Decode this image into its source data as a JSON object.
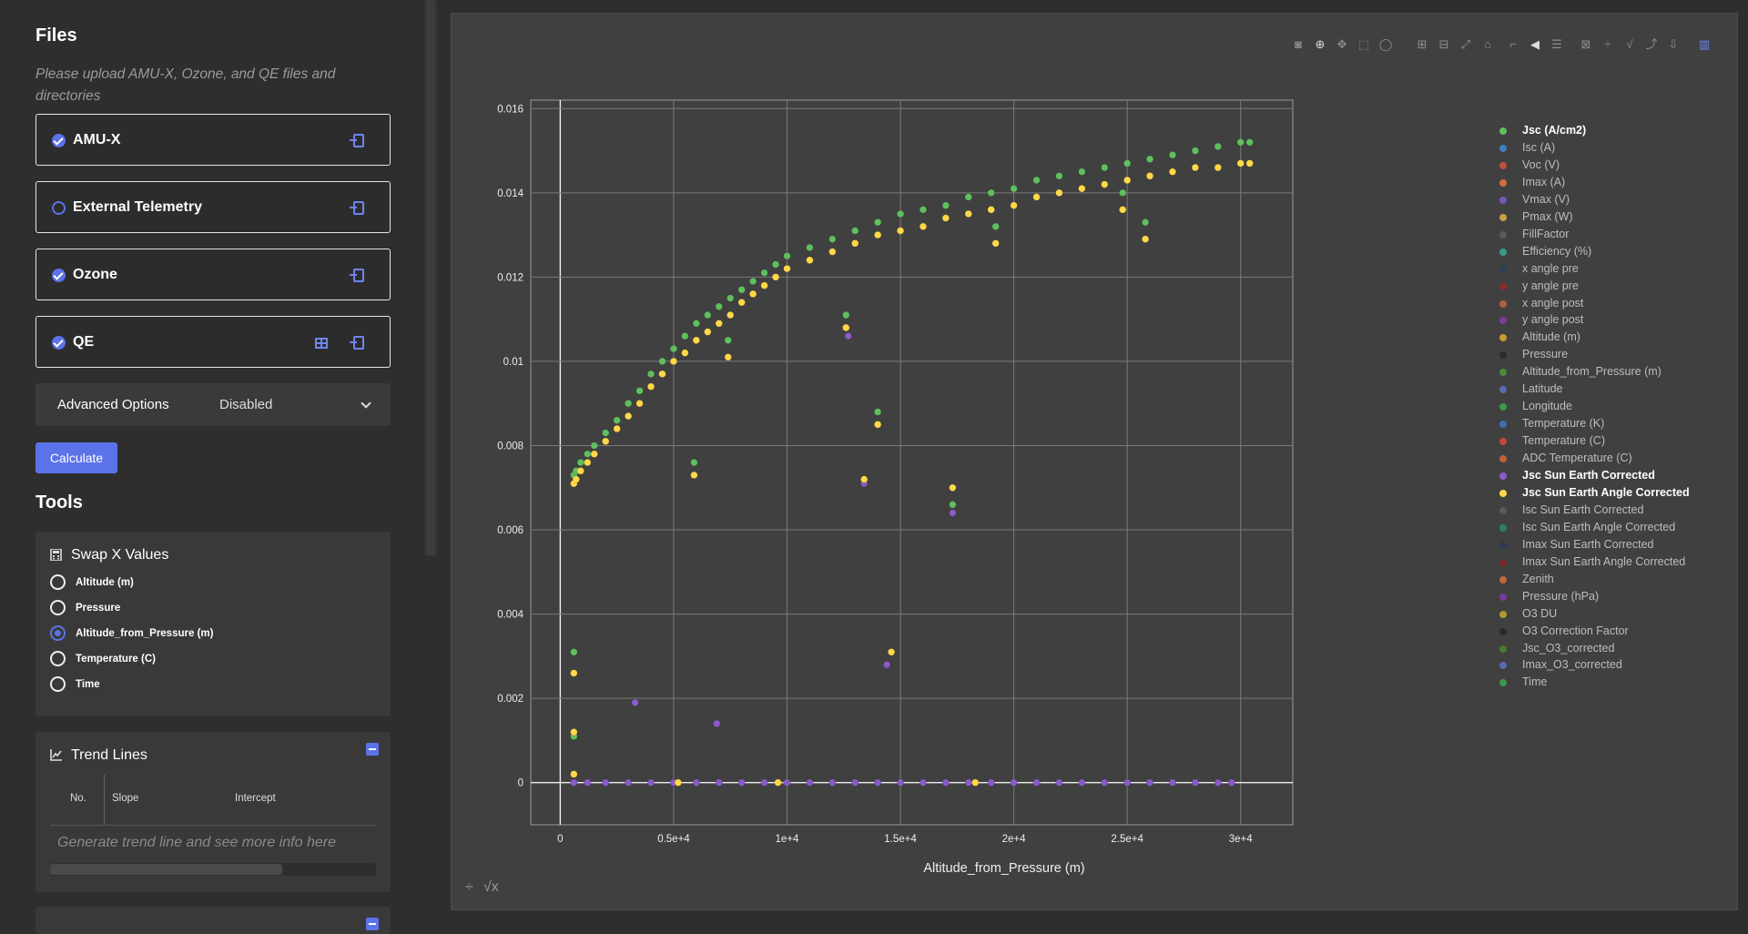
{
  "files": {
    "heading": "Files",
    "hint": "Please upload AMU-X, Ozone, and QE files and directories",
    "items": [
      {
        "label": "AMU-X",
        "checked": true,
        "has_table": false
      },
      {
        "label": "External Telemetry",
        "checked": false,
        "has_table": false
      },
      {
        "label": "Ozone",
        "checked": true,
        "has_table": false
      },
      {
        "label": "QE",
        "checked": true,
        "has_table": true
      }
    ]
  },
  "advanced": {
    "label": "Advanced Options",
    "value": "Disabled"
  },
  "calculate_label": "Calculate",
  "tools": {
    "heading": "Tools",
    "swap": {
      "title": "Swap X Values",
      "options": [
        "Altitude (m)",
        "Pressure",
        "Altitude_from_Pressure (m)",
        "Temperature (C)",
        "Time"
      ],
      "selected": "Altitude_from_Pressure (m)"
    },
    "trend": {
      "title": "Trend Lines",
      "columns": [
        "No.",
        "Slope",
        "Intercept"
      ],
      "placeholder": "Generate trend line and see more info here"
    }
  },
  "colors": {
    "accent": "#5b73e8",
    "green": "#5fbf5f",
    "yellow": "#ffd84a",
    "purple": "#8a5bc8"
  },
  "chart_data": {
    "type": "scatter",
    "xlabel": "Altitude_from_Pressure (m)",
    "ylabel": "",
    "xlim": [
      -1300,
      32300
    ],
    "ylim": [
      -0.001,
      0.0162
    ],
    "x_ticks": [
      "0",
      "0.5e+4",
      "1e+4",
      "1.5e+4",
      "2e+4",
      "2.5e+4",
      "3e+4"
    ],
    "x_tick_values": [
      0,
      5000,
      10000,
      15000,
      20000,
      25000,
      30000
    ],
    "y_ticks": [
      "0",
      "0.002",
      "0.004",
      "0.006",
      "0.008",
      "0.01",
      "0.012",
      "0.014",
      "0.016"
    ],
    "y_tick_values": [
      0,
      0.002,
      0.004,
      0.006,
      0.008,
      0.01,
      0.012,
      0.014,
      0.016
    ],
    "grid": true,
    "legend_position": "right",
    "series": [
      {
        "name": "Jsc (A/cm2)",
        "color": "#5fbf5f",
        "x": [
          600,
          700,
          900,
          1200,
          1500,
          2000,
          2500,
          3000,
          3500,
          4000,
          4500,
          5000,
          5500,
          6000,
          6500,
          7000,
          7500,
          8000,
          8500,
          9000,
          9500,
          10000,
          11000,
          12000,
          13000,
          14000,
          15000,
          16000,
          17000,
          18000,
          19000,
          20000,
          21000,
          22000,
          23000,
          24000,
          25000,
          26000,
          27000,
          28000,
          29000,
          30000,
          30400,
          5900,
          7400,
          12600,
          14000,
          13400,
          17300,
          19200,
          24800,
          25800,
          600,
          600,
          600
        ],
        "y": [
          0.0073,
          0.0074,
          0.0076,
          0.0078,
          0.008,
          0.0083,
          0.0086,
          0.009,
          0.0093,
          0.0097,
          0.01,
          0.0103,
          0.0106,
          0.0109,
          0.0111,
          0.0113,
          0.0115,
          0.0117,
          0.0119,
          0.0121,
          0.0123,
          0.0125,
          0.0127,
          0.0129,
          0.0131,
          0.0133,
          0.0135,
          0.0136,
          0.0137,
          0.0139,
          0.014,
          0.0141,
          0.0143,
          0.0144,
          0.0145,
          0.0146,
          0.0147,
          0.0148,
          0.0149,
          0.015,
          0.0151,
          0.0152,
          0.0152,
          0.0076,
          0.0105,
          0.0111,
          0.0088,
          0.0072,
          0.0066,
          0.0132,
          0.014,
          0.0133,
          0.0031,
          0.0011,
          0.0002
        ]
      },
      {
        "name": "Jsc Sun Earth Corrected",
        "color": "#8a5bc8",
        "x": [
          600,
          1200,
          2000,
          3000,
          3300,
          4000,
          5000,
          6000,
          6900,
          7000,
          8000,
          9000,
          10000,
          11000,
          12000,
          12700,
          13000,
          13400,
          14000,
          14400,
          15000,
          16000,
          17000,
          17300,
          18000,
          19000,
          20000,
          21000,
          22000,
          23000,
          24000,
          25000,
          26000,
          27000,
          28000,
          29000,
          29600
        ],
        "y": [
          0,
          0,
          0,
          0,
          0.0019,
          0,
          0,
          0,
          0.0014,
          0,
          0,
          0,
          0,
          0,
          0,
          0.0106,
          0,
          0.0071,
          0,
          0.0028,
          0,
          0,
          0,
          0.0064,
          0,
          0,
          0,
          0,
          0,
          0,
          0,
          0,
          0,
          0,
          0,
          0,
          0
        ]
      },
      {
        "name": "Jsc Sun Earth Angle Corrected",
        "color": "#ffd84a",
        "x": [
          600,
          700,
          900,
          1200,
          1500,
          2000,
          2500,
          3000,
          3500,
          4000,
          4500,
          5000,
          5500,
          6000,
          6500,
          7000,
          7500,
          8000,
          8500,
          9000,
          9500,
          10000,
          11000,
          12000,
          13000,
          14000,
          15000,
          16000,
          17000,
          18000,
          19000,
          20000,
          21000,
          22000,
          23000,
          24000,
          25000,
          26000,
          27000,
          28000,
          29000,
          30000,
          30400,
          5900,
          7400,
          12600,
          14000,
          13400,
          17300,
          14600,
          19200,
          24800,
          25800,
          600,
          600,
          600,
          5200,
          9600,
          18300
        ],
        "y": [
          0.0071,
          0.0072,
          0.0074,
          0.0076,
          0.0078,
          0.0081,
          0.0084,
          0.0087,
          0.009,
          0.0094,
          0.0097,
          0.01,
          0.0102,
          0.0105,
          0.0107,
          0.0109,
          0.0111,
          0.0114,
          0.0116,
          0.0118,
          0.012,
          0.0122,
          0.0124,
          0.0126,
          0.0128,
          0.013,
          0.0131,
          0.0132,
          0.0134,
          0.0135,
          0.0136,
          0.0137,
          0.0139,
          0.014,
          0.0141,
          0.0142,
          0.0143,
          0.0144,
          0.0145,
          0.0146,
          0.0146,
          0.0147,
          0.0147,
          0.0073,
          0.0101,
          0.0108,
          0.0085,
          0.0072,
          0.007,
          0.0031,
          0.0128,
          0.0136,
          0.0129,
          0.0026,
          0.0012,
          0.0002,
          0,
          0,
          0
        ]
      }
    ],
    "legend": [
      {
        "name": "Jsc (A/cm2)",
        "color": "#5fbf5f",
        "active": true
      },
      {
        "name": "Isc (A)",
        "color": "#3c7fc0",
        "active": false
      },
      {
        "name": "Voc (V)",
        "color": "#c0503c",
        "active": false
      },
      {
        "name": "Imax (A)",
        "color": "#d0703a",
        "active": false
      },
      {
        "name": "Vmax (V)",
        "color": "#7a54b8",
        "active": false
      },
      {
        "name": "Pmax (W)",
        "color": "#c8a040",
        "active": false
      },
      {
        "name": "FillFactor",
        "color": "#5a5a5a",
        "active": false
      },
      {
        "name": "Efficiency (%)",
        "color": "#3a9a88",
        "active": false
      },
      {
        "name": "x angle pre",
        "color": "#2c4058",
        "active": false
      },
      {
        "name": "y angle pre",
        "color": "#8a2c2c",
        "active": false
      },
      {
        "name": "x angle post",
        "color": "#b0603c",
        "active": false
      },
      {
        "name": "y angle post",
        "color": "#7a3c9a",
        "active": false
      },
      {
        "name": "Altitude (m)",
        "color": "#c89a30",
        "active": false
      },
      {
        "name": "Pressure",
        "color": "#2a2a2a",
        "active": false
      },
      {
        "name": "Altitude_from_Pressure (m)",
        "color": "#4a8a3a",
        "active": false
      },
      {
        "name": "Latitude",
        "color": "#5a6ab0",
        "active": false
      },
      {
        "name": "Longitude",
        "color": "#3a9a4a",
        "active": false
      },
      {
        "name": "Temperature (K)",
        "color": "#3a70b0",
        "active": false
      },
      {
        "name": "Temperature (C)",
        "color": "#c04a3a",
        "active": false
      },
      {
        "name": "ADC Temperature (C)",
        "color": "#c0603a",
        "active": false
      },
      {
        "name": "Jsc Sun Earth Corrected",
        "color": "#8a5bc8",
        "active": true
      },
      {
        "name": "Jsc Sun Earth Angle Corrected",
        "color": "#ffd84a",
        "active": true
      },
      {
        "name": "Isc Sun Earth Corrected",
        "color": "#5a5a5a",
        "active": false
      },
      {
        "name": "Isc Sun Earth Angle Corrected",
        "color": "#2a8070",
        "active": false
      },
      {
        "name": "Imax Sun Earth Corrected",
        "color": "#2c3c52",
        "active": false
      },
      {
        "name": "Imax Sun Earth Angle Corrected",
        "color": "#7a2a2a",
        "active": false
      },
      {
        "name": "Zenith",
        "color": "#c06a3a",
        "active": false
      },
      {
        "name": "Pressure (hPa)",
        "color": "#7a3a9a",
        "active": false
      },
      {
        "name": "O3 DU",
        "color": "#b09a30",
        "active": false
      },
      {
        "name": "O3 Correction Factor",
        "color": "#2a2a2a",
        "active": false
      },
      {
        "name": "Jsc_O3_corrected",
        "color": "#4a7a30",
        "active": false
      },
      {
        "name": "Imax_O3_corrected",
        "color": "#5a6ab0",
        "active": false
      },
      {
        "name": "Time",
        "color": "#3a9a4a",
        "active": false
      }
    ]
  }
}
